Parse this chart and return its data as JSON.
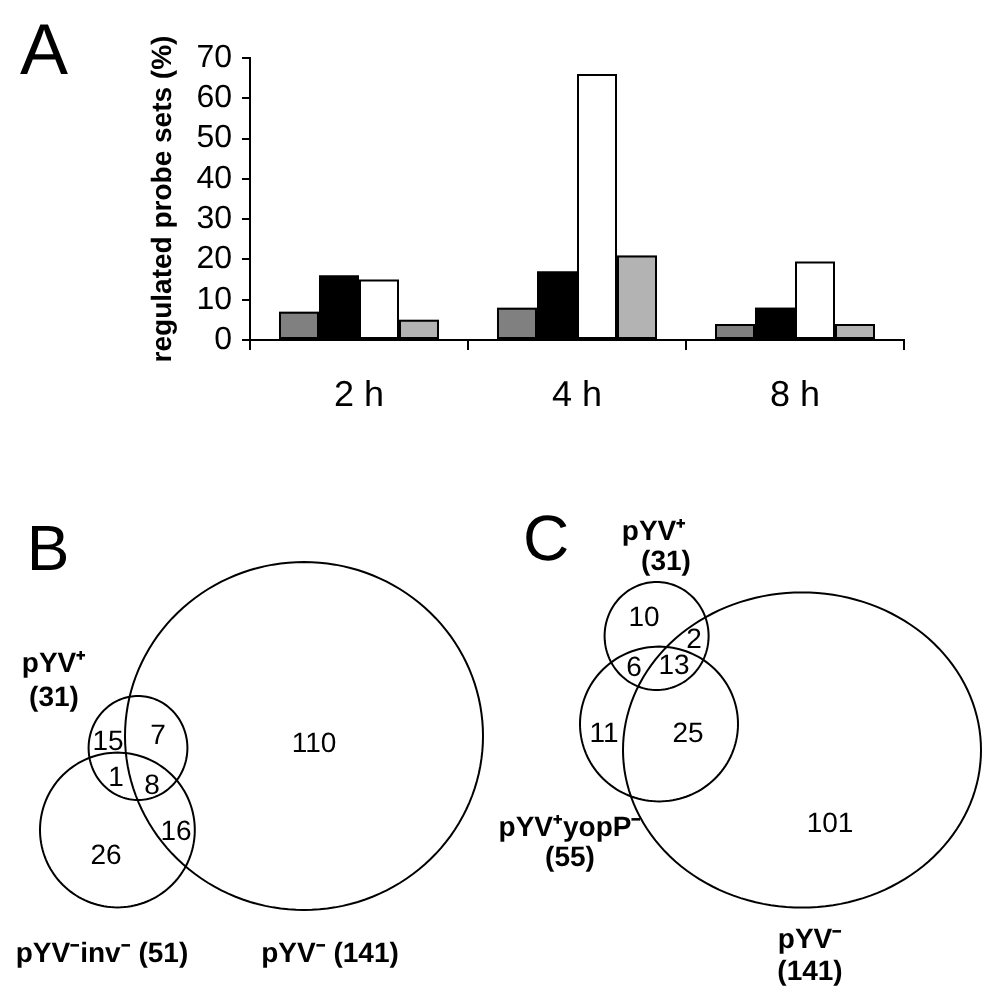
{
  "chart_data": [
    {
      "type": "bar",
      "title": "A",
      "categories": [
        "2 h",
        "4 h",
        "8 h"
      ],
      "series": [
        {
          "color": "#808080",
          "values": [
            7,
            8,
            4
          ]
        },
        {
          "color": "#000000",
          "values": [
            16,
            17,
            8
          ]
        },
        {
          "color": "#ffffff",
          "values": [
            15,
            66,
            19.5
          ]
        },
        {
          "color": "#b3b3b3",
          "values": [
            5,
            21,
            4
          ]
        }
      ],
      "ylabel": "regulated probe sets (%)",
      "ylim": [
        0,
        70
      ],
      "yticks": [
        0,
        10,
        20,
        30,
        40,
        50,
        60,
        70
      ],
      "grid": false,
      "legend": false
    },
    {
      "type": "other",
      "title": "B",
      "annotations": [
        "pYV⁺ (31)",
        "pYV⁻inv⁻ (51)",
        "pYV⁻ (141)",
        "15",
        "7",
        "1",
        "8",
        "26",
        "16",
        "110"
      ]
    },
    {
      "type": "other",
      "title": "C",
      "annotations": [
        "pYV⁺ (31)",
        "pYV⁺yopP⁻ (55)",
        "pYV⁻ (141)",
        "10",
        "2",
        "6",
        "13",
        "11",
        "25",
        "101"
      ]
    }
  ]
}
